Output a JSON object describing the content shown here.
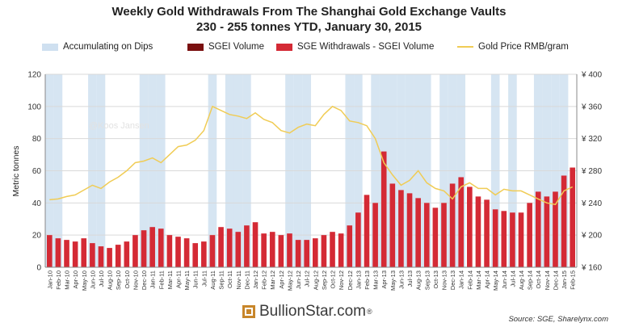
{
  "chart_data": {
    "type": "bar",
    "title": "Weekly Gold Withdrawals From The Shanghai Gold Exchange Vaults",
    "subtitle": "230 - 255 tonnes YTD, January 30, 2015",
    "ylabel": "Metric tonnes",
    "ylim": [
      0,
      120
    ],
    "yticks": [
      "0",
      "20",
      "40",
      "60",
      "80",
      "100",
      "120"
    ],
    "y2lim": [
      160,
      400
    ],
    "y2ticks": [
      "¥ 160",
      "¥ 200",
      "¥ 240",
      "¥ 280",
      "¥ 320",
      "¥ 360",
      "¥ 400"
    ],
    "categories": [
      "Jan-10",
      "Feb-10",
      "Mar-10",
      "Apr-10",
      "May-10",
      "Jun-10",
      "Jul-10",
      "Aug-10",
      "Sep-10",
      "Oct-10",
      "Nov-10",
      "Dec-10",
      "Jan-11",
      "Feb-11",
      "Mar-11",
      "Apr-11",
      "May-11",
      "Jun-11",
      "Jul-11",
      "Aug-11",
      "Sep-11",
      "Oct-11",
      "Nov-11",
      "Dec-11",
      "Jan-12",
      "Feb-12",
      "Mar-12",
      "Apr-12",
      "May-12",
      "Jun-12",
      "Jul-12",
      "Aug-12",
      "Sep-12",
      "Oct-12",
      "Nov-12",
      "Dec-12",
      "Jan-13",
      "Feb-13",
      "Mar-13",
      "Apr-13",
      "May-13",
      "Jun-13",
      "Jul-13",
      "Aug-13",
      "Sep-13",
      "Oct-13",
      "Nov-13",
      "Dec-13",
      "Jan-14",
      "Feb-14",
      "Mar-14",
      "Apr-14",
      "May-14",
      "Jun-14",
      "Jul-14",
      "Aug-14",
      "Sep-14",
      "Oct-14",
      "Nov-14",
      "Dec-14",
      "Jan-15",
      "Feb-15"
    ],
    "legend": {
      "dips": "Accumulating on Dips",
      "sgei": "SGEI Volume",
      "withdrawals": "SGE Withdrawals - SGEI Volume",
      "price": "Gold Price RMB/gram"
    },
    "colors": {
      "dips": "#cfe0f0",
      "sgei": "#7a1010",
      "withdrawals": "#d42a35",
      "price": "#f0cc55",
      "grid": "#d9d9d9"
    },
    "monthly_withdrawals_tonnes": [
      20,
      18,
      17,
      16,
      18,
      15,
      13,
      12,
      14,
      16,
      20,
      23,
      25,
      24,
      20,
      19,
      18,
      15,
      16,
      20,
      25,
      24,
      22,
      26,
      28,
      21,
      22,
      20,
      21,
      17,
      17,
      18,
      20,
      22,
      21,
      26,
      34,
      45,
      40,
      72,
      52,
      48,
      46,
      43,
      40,
      37,
      40,
      52,
      56,
      50,
      44,
      42,
      36,
      35,
      34,
      34,
      40,
      47,
      44,
      47,
      57,
      62
    ],
    "monthly_gold_price_rmb": [
      244,
      245,
      248,
      250,
      256,
      262,
      258,
      266,
      272,
      280,
      290,
      292,
      296,
      290,
      300,
      310,
      312,
      318,
      330,
      360,
      355,
      350,
      348,
      345,
      352,
      344,
      340,
      330,
      327,
      334,
      338,
      336,
      350,
      360,
      355,
      342,
      340,
      336,
      320,
      290,
      275,
      262,
      268,
      280,
      265,
      258,
      255,
      245,
      260,
      265,
      258,
      258,
      250,
      257,
      255,
      255,
      250,
      245,
      240,
      238,
      255,
      260
    ],
    "dip_month_indices": [
      0,
      1,
      5,
      6,
      11,
      12,
      13,
      19,
      21,
      22,
      23,
      28,
      29,
      30,
      35,
      36,
      38,
      39,
      40,
      41,
      42,
      43,
      44,
      46,
      47,
      48,
      52,
      54,
      57,
      58,
      59,
      60
    ]
  },
  "source": "Source: SGE, Sharelynx.com",
  "watermark": "@Koos Jansen",
  "brand": {
    "name": "BullionStar.com",
    "mark": "®"
  }
}
